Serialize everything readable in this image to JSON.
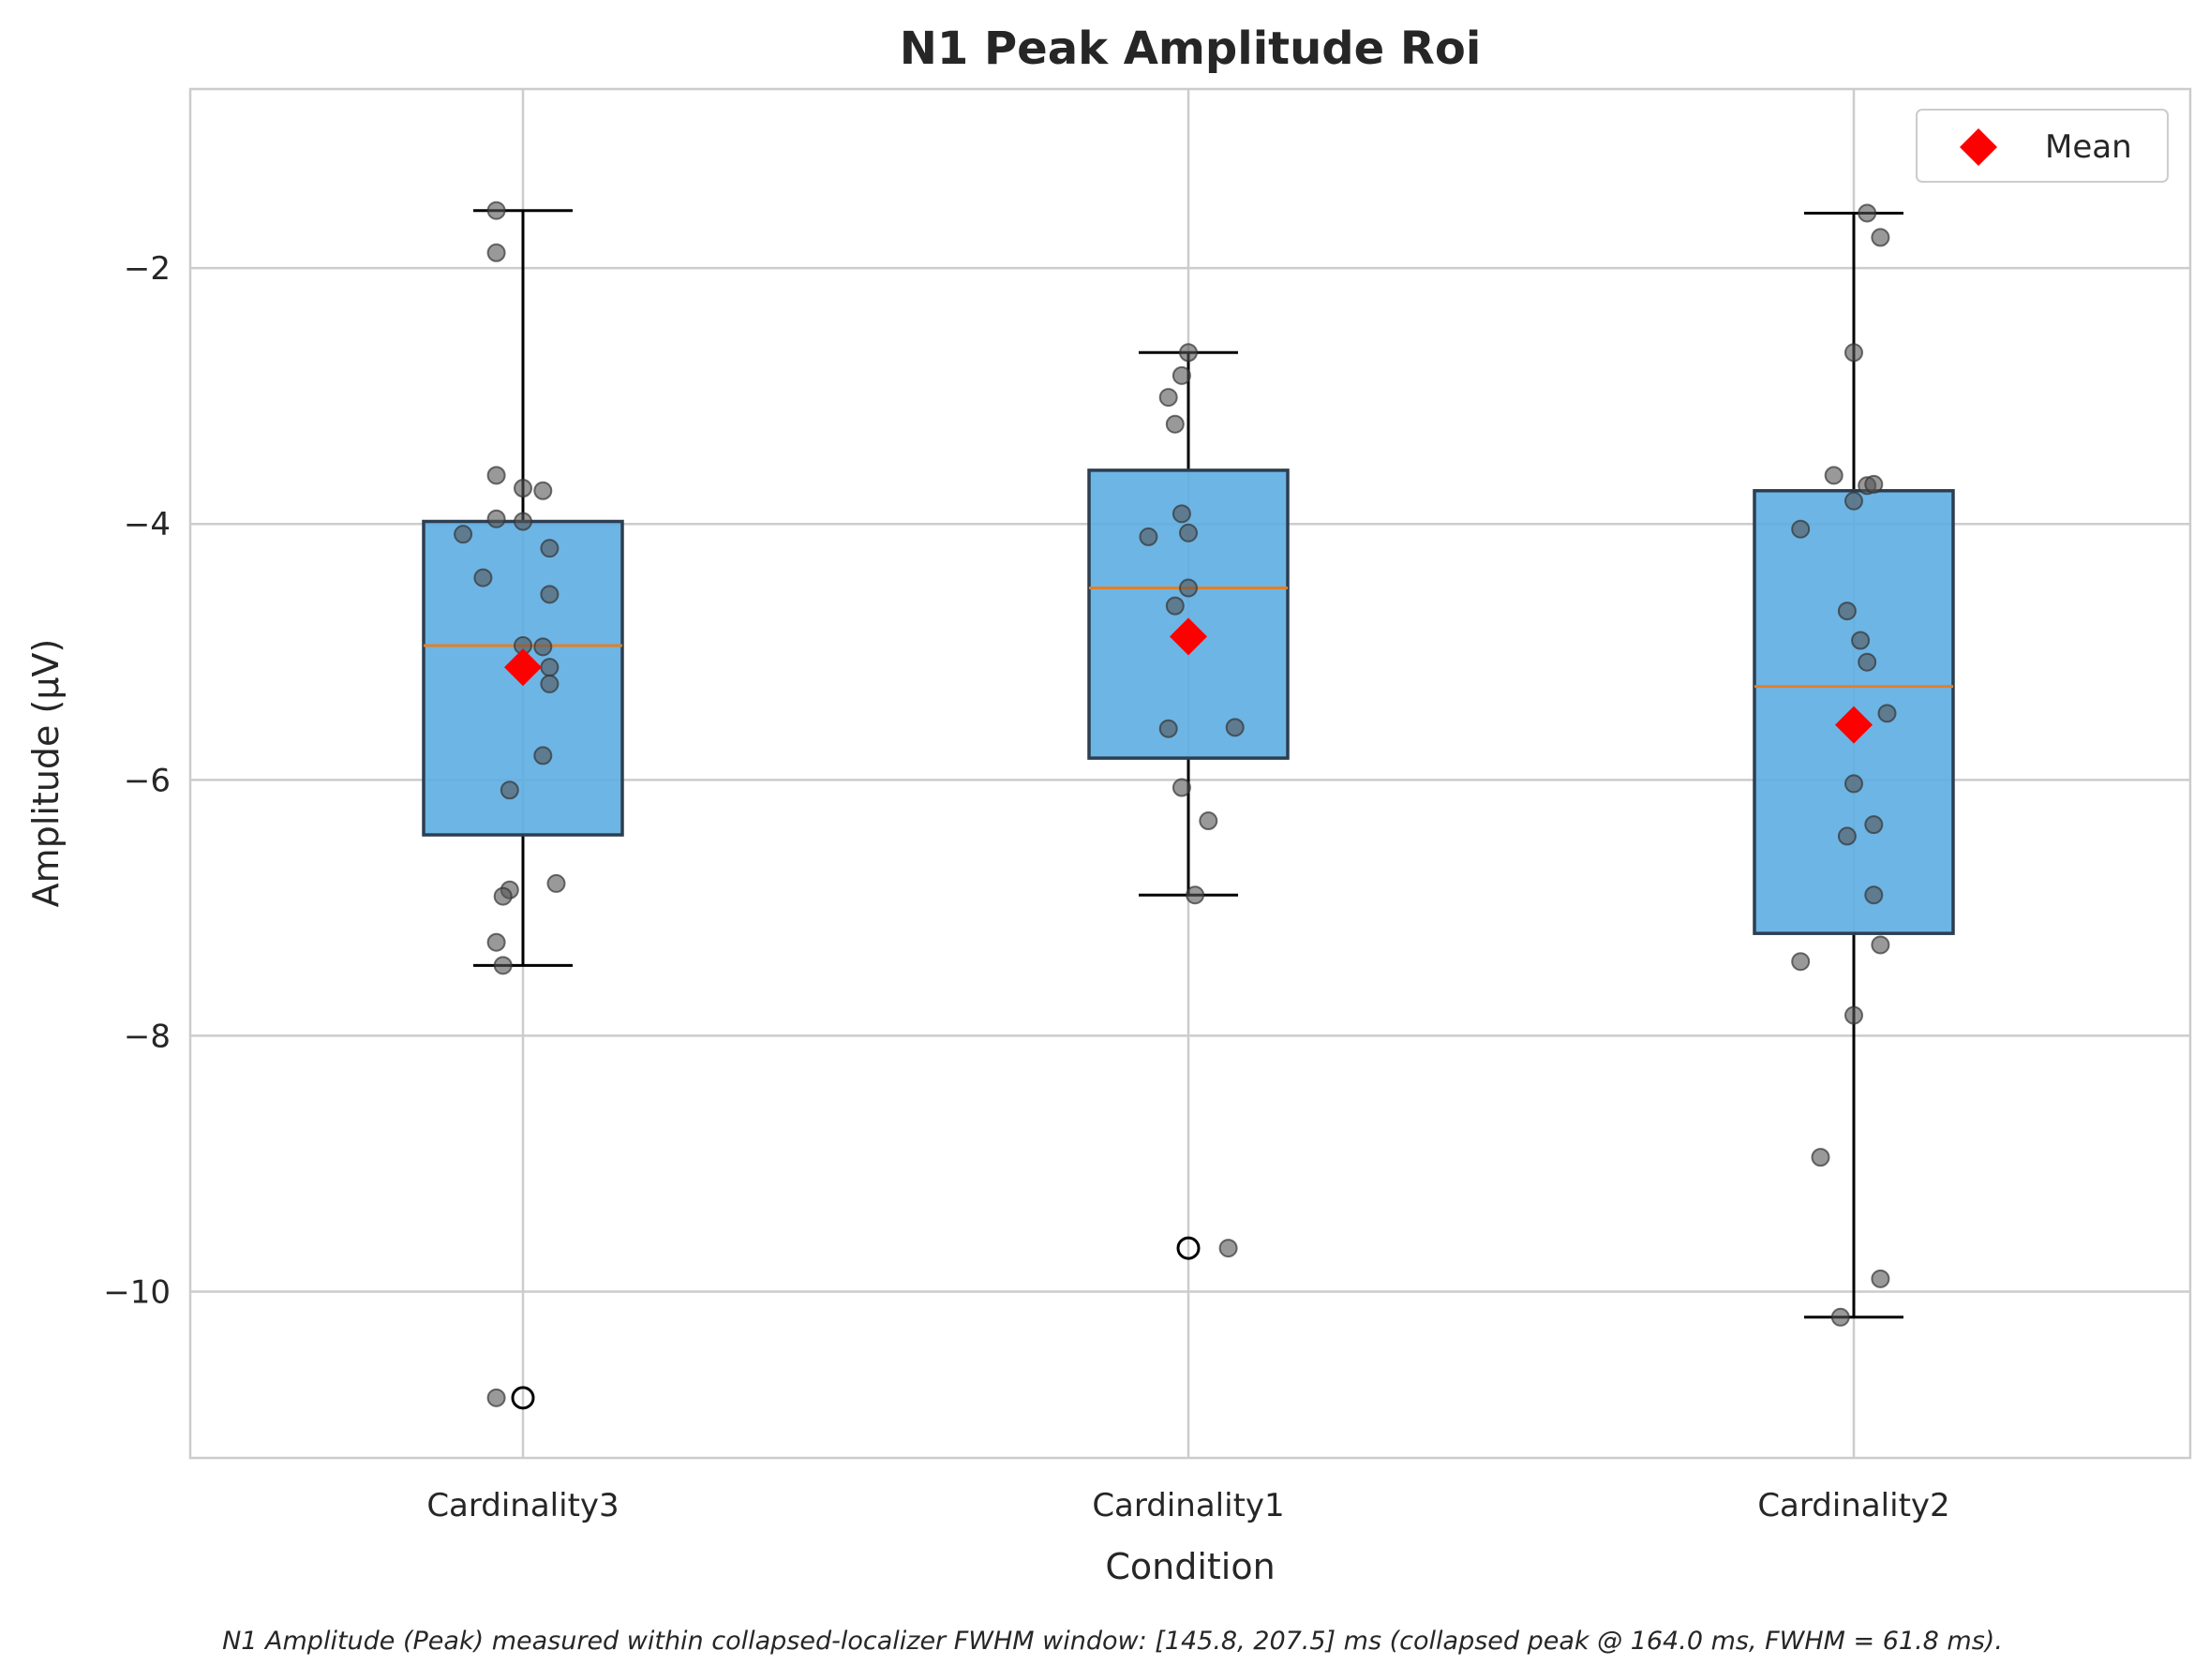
{
  "chart_data": {
    "type": "box",
    "title": "N1 Peak Amplitude Roi",
    "xlabel": "Condition",
    "ylabel": "Amplitude (µV)",
    "caption": "N1 Amplitude (Peak) measured within collapsed-localizer FWHM window: [145.8, 207.5] ms (collapsed peak @ 164.0 ms, FWHM = 61.8 ms).",
    "ylim": [
      -11.3,
      -0.6
    ],
    "yticks": [
      -2,
      -4,
      -6,
      -8,
      -10
    ],
    "ytick_labels": [
      "−2",
      "−4",
      "−6",
      "−8",
      "−10"
    ],
    "grid": true,
    "legend": {
      "position": "top-right",
      "entries": [
        {
          "label": "Mean",
          "marker": "diamond",
          "color": "#ff0000"
        }
      ]
    },
    "colors": {
      "box_fill": "#5dade2",
      "box_edge": "#2c3e50",
      "median": "#e67e22",
      "mean": "#ff0000",
      "points": "#555555"
    },
    "categories": [
      "Cardinality3",
      "Cardinality1",
      "Cardinality2"
    ],
    "boxes": [
      {
        "name": "Cardinality3",
        "q1": -6.43,
        "median": -4.95,
        "q3": -3.98,
        "whisker_low": -7.45,
        "whisker_high": -1.55,
        "mean": -5.12,
        "outliers": [
          -10.83
        ],
        "points": [
          {
            "dx": -0.04,
            "y": -1.55
          },
          {
            "dx": -0.04,
            "y": -1.88
          },
          {
            "dx": -0.04,
            "y": -3.62
          },
          {
            "dx": 0.0,
            "y": -3.72
          },
          {
            "dx": 0.03,
            "y": -3.74
          },
          {
            "dx": -0.04,
            "y": -3.96
          },
          {
            "dx": 0.0,
            "y": -3.98
          },
          {
            "dx": -0.09,
            "y": -4.08
          },
          {
            "dx": 0.04,
            "y": -4.19
          },
          {
            "dx": -0.06,
            "y": -4.42
          },
          {
            "dx": 0.04,
            "y": -4.55
          },
          {
            "dx": 0.0,
            "y": -4.95
          },
          {
            "dx": 0.03,
            "y": -4.96
          },
          {
            "dx": 0.04,
            "y": -5.12
          },
          {
            "dx": 0.04,
            "y": -5.25
          },
          {
            "dx": 0.03,
            "y": -5.81
          },
          {
            "dx": -0.02,
            "y": -6.08
          },
          {
            "dx": 0.05,
            "y": -6.81
          },
          {
            "dx": -0.02,
            "y": -6.86
          },
          {
            "dx": -0.03,
            "y": -6.91
          },
          {
            "dx": -0.04,
            "y": -7.27
          },
          {
            "dx": -0.03,
            "y": -7.45
          },
          {
            "dx": -0.04,
            "y": -10.83
          }
        ]
      },
      {
        "name": "Cardinality1",
        "q1": -5.83,
        "median": -4.5,
        "q3": -3.58,
        "whisker_low": -6.9,
        "whisker_high": -2.66,
        "mean": -4.88,
        "outliers": [
          -9.66
        ],
        "points": [
          {
            "dx": 0.0,
            "y": -2.66
          },
          {
            "dx": -0.01,
            "y": -2.84
          },
          {
            "dx": -0.03,
            "y": -3.01
          },
          {
            "dx": -0.02,
            "y": -3.22
          },
          {
            "dx": -0.01,
            "y": -3.92
          },
          {
            "dx": 0.0,
            "y": -4.07
          },
          {
            "dx": -0.06,
            "y": -4.1
          },
          {
            "dx": 0.0,
            "y": -4.5
          },
          {
            "dx": -0.02,
            "y": -4.64
          },
          {
            "dx": -0.03,
            "y": -5.6
          },
          {
            "dx": 0.07,
            "y": -5.59
          },
          {
            "dx": -0.01,
            "y": -6.06
          },
          {
            "dx": 0.03,
            "y": -6.32
          },
          {
            "dx": 0.01,
            "y": -6.9
          },
          {
            "dx": 0.06,
            "y": -9.66
          }
        ]
      },
      {
        "name": "Cardinality2",
        "q1": -7.2,
        "median": -5.27,
        "q3": -3.74,
        "whisker_low": -10.2,
        "whisker_high": -1.57,
        "mean": -5.57,
        "outliers": [],
        "points": [
          {
            "dx": 0.02,
            "y": -1.57
          },
          {
            "dx": 0.04,
            "y": -1.76
          },
          {
            "dx": 0.0,
            "y": -2.66
          },
          {
            "dx": -0.03,
            "y": -3.62
          },
          {
            "dx": 0.02,
            "y": -3.7
          },
          {
            "dx": 0.03,
            "y": -3.69
          },
          {
            "dx": 0.0,
            "y": -3.82
          },
          {
            "dx": -0.08,
            "y": -4.04
          },
          {
            "dx": -0.01,
            "y": -4.68
          },
          {
            "dx": 0.01,
            "y": -4.91
          },
          {
            "dx": 0.02,
            "y": -5.08
          },
          {
            "dx": 0.05,
            "y": -5.48
          },
          {
            "dx": 0.0,
            "y": -6.03
          },
          {
            "dx": 0.03,
            "y": -6.35
          },
          {
            "dx": -0.01,
            "y": -6.44
          },
          {
            "dx": 0.03,
            "y": -6.9
          },
          {
            "dx": 0.04,
            "y": -7.29
          },
          {
            "dx": -0.08,
            "y": -7.42
          },
          {
            "dx": 0.0,
            "y": -7.84
          },
          {
            "dx": -0.05,
            "y": -8.95
          },
          {
            "dx": 0.04,
            "y": -9.9
          },
          {
            "dx": -0.02,
            "y": -10.2
          }
        ]
      }
    ]
  }
}
